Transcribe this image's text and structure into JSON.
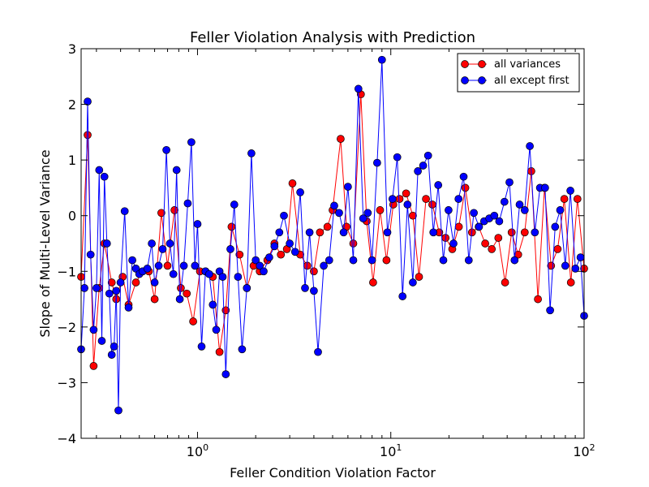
{
  "chart_data": {
    "type": "line",
    "title": "Feller Violation Analysis with Prediction",
    "xlabel": "Feller Condition Violation Factor",
    "ylabel": "Slope of Multi-Level Variance",
    "xscale": "log",
    "xlim": [
      0.25,
      100
    ],
    "ylim": [
      -4,
      3
    ],
    "x_ticks": [
      {
        "value": 1,
        "base": "10",
        "exp": "0"
      },
      {
        "value": 10,
        "base": "10",
        "exp": "1"
      },
      {
        "value": 100,
        "base": "10",
        "exp": "2"
      }
    ],
    "y_ticks": [
      {
        "value": -4,
        "label": "−4"
      },
      {
        "value": -3,
        "label": "−3"
      },
      {
        "value": -2,
        "label": "−2"
      },
      {
        "value": -1,
        "label": "−1"
      },
      {
        "value": 0,
        "label": "0"
      },
      {
        "value": 1,
        "label": "1"
      },
      {
        "value": 2,
        "label": "2"
      },
      {
        "value": 3,
        "label": "3"
      }
    ],
    "legend_position": "top-right",
    "series": [
      {
        "name": "all variances",
        "color": "#ff0000",
        "x": [
          0.25,
          0.27,
          0.29,
          0.31,
          0.33,
          0.36,
          0.38,
          0.41,
          0.44,
          0.48,
          0.52,
          0.56,
          0.6,
          0.65,
          0.7,
          0.76,
          0.82,
          0.88,
          0.95,
          1.03,
          1.1,
          1.2,
          1.3,
          1.4,
          1.5,
          1.65,
          1.8,
          1.95,
          2.1,
          2.3,
          2.5,
          2.7,
          2.9,
          3.1,
          3.4,
          3.7,
          4.0,
          4.3,
          4.7,
          5.0,
          5.5,
          5.9,
          6.4,
          7.0,
          7.5,
          8.1,
          8.8,
          9.5,
          10.3,
          11.1,
          12,
          13,
          14,
          15.2,
          16.4,
          17.8,
          19.2,
          20.8,
          22.5,
          24.3,
          26.3,
          28.5,
          30.8,
          33.3,
          36,
          39,
          42.2,
          45.6,
          49.3,
          53.3,
          57.7,
          62.4,
          67.5,
          73,
          79,
          85.4,
          92.4,
          100
        ],
        "y": [
          -1.1,
          1.45,
          -2.7,
          -1.3,
          -0.5,
          -1.2,
          -1.5,
          -1.1,
          -1.6,
          -1.2,
          -1.0,
          -1.0,
          -1.5,
          0.05,
          -0.9,
          0.1,
          -1.3,
          -1.4,
          -1.9,
          -1.0,
          -1.0,
          -1.1,
          -2.45,
          -1.7,
          -0.2,
          -0.7,
          -1.3,
          -0.9,
          -1.0,
          -0.8,
          -0.5,
          -0.7,
          -0.6,
          0.58,
          -0.7,
          -0.9,
          -1.0,
          -0.3,
          -0.2,
          0.1,
          1.38,
          -0.2,
          -0.5,
          2.18,
          -0.1,
          -1.2,
          0.1,
          -0.8,
          0.2,
          0.3,
          0.4,
          0.0,
          -1.1,
          0.3,
          0.2,
          -0.3,
          -0.4,
          -0.6,
          -0.2,
          0.5,
          -0.3,
          -0.2,
          -0.5,
          -0.6,
          -0.4,
          -1.2,
          -0.3,
          -0.7,
          -0.3,
          0.8,
          -1.5,
          0.5,
          -0.9,
          -0.6,
          0.3,
          -1.2,
          0.3,
          -0.95
        ]
      },
      {
        "name": "all except first",
        "color": "#0000ff",
        "x": [
          0.25,
          0.26,
          0.27,
          0.28,
          0.29,
          0.3,
          0.31,
          0.32,
          0.33,
          0.34,
          0.35,
          0.36,
          0.37,
          0.38,
          0.39,
          0.4,
          0.42,
          0.44,
          0.46,
          0.48,
          0.5,
          0.52,
          0.55,
          0.58,
          0.6,
          0.63,
          0.66,
          0.69,
          0.72,
          0.75,
          0.78,
          0.81,
          0.85,
          0.89,
          0.93,
          0.97,
          1.0,
          1.05,
          1.1,
          1.15,
          1.2,
          1.25,
          1.3,
          1.35,
          1.4,
          1.48,
          1.55,
          1.62,
          1.7,
          1.8,
          1.9,
          2.0,
          2.1,
          2.2,
          2.35,
          2.5,
          2.65,
          2.8,
          3.0,
          3.2,
          3.4,
          3.6,
          3.8,
          4.0,
          4.2,
          4.5,
          4.8,
          5.1,
          5.4,
          5.7,
          6.0,
          6.4,
          6.8,
          7.2,
          7.6,
          8.0,
          8.5,
          9.0,
          9.6,
          10.2,
          10.8,
          11.5,
          12.2,
          13,
          13.8,
          14.7,
          15.6,
          16.6,
          17.6,
          18.7,
          19.9,
          21.1,
          22.4,
          23.8,
          25.3,
          26.9,
          28.6,
          30.4,
          32.3,
          34.3,
          36.4,
          38.7,
          41.1,
          43.7,
          46.4,
          49.3,
          52.4,
          55.6,
          59.1,
          62.8,
          66.7,
          70.8,
          75.2,
          79.9,
          84.9,
          90.2,
          95.8,
          100
        ],
        "y": [
          -2.4,
          -1.3,
          2.05,
          -0.7,
          -2.05,
          -1.3,
          0.82,
          -2.25,
          0.7,
          -0.5,
          -1.4,
          -2.5,
          -2.35,
          -1.35,
          -3.5,
          -1.2,
          0.08,
          -1.65,
          -0.8,
          -0.95,
          -1.05,
          -1.0,
          -0.95,
          -0.5,
          -1.2,
          -0.9,
          -0.6,
          1.18,
          -0.5,
          -1.05,
          0.82,
          -1.5,
          -0.9,
          0.22,
          1.32,
          -0.9,
          -0.15,
          -2.35,
          -1.0,
          -1.05,
          -1.6,
          -2.05,
          -1.0,
          -1.1,
          -2.85,
          -0.6,
          0.2,
          -1.1,
          -2.4,
          -1.3,
          1.12,
          -0.8,
          -0.9,
          -1.0,
          -0.75,
          -0.55,
          -0.3,
          0.0,
          -0.5,
          -0.65,
          0.42,
          -1.3,
          -0.3,
          -1.35,
          -2.45,
          -0.9,
          -0.8,
          0.18,
          0.05,
          -0.3,
          0.52,
          -0.8,
          2.28,
          -0.05,
          0.05,
          -0.8,
          0.95,
          2.8,
          -0.3,
          0.3,
          1.05,
          -1.45,
          0.2,
          -1.2,
          0.8,
          0.9,
          1.08,
          -0.3,
          0.55,
          -0.8,
          0.1,
          -0.5,
          0.3,
          0.7,
          -0.8,
          0.05,
          -0.2,
          -0.1,
          -0.05,
          0.0,
          -0.1,
          0.25,
          0.6,
          -0.8,
          0.2,
          0.1,
          1.25,
          -0.3,
          0.5,
          0.5,
          -1.7,
          -0.2,
          0.1,
          -0.9,
          0.45,
          -0.95,
          -0.75,
          -1.8
        ]
      }
    ]
  }
}
